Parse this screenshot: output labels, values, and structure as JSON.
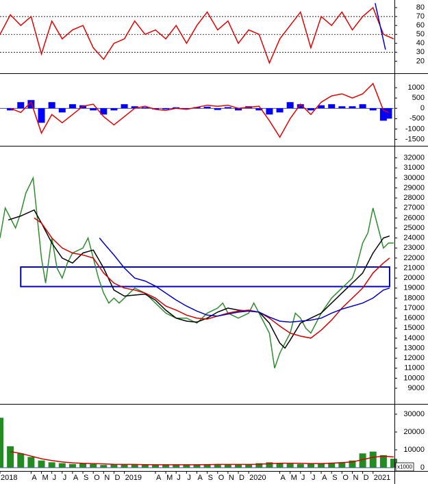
{
  "chart_data": [
    {
      "type": "line",
      "ylim": [
        8,
        87
      ],
      "yticks": [
        20,
        30,
        40,
        50,
        60,
        70,
        80
      ],
      "ref_lines": [
        30,
        50,
        70
      ],
      "xlim": [
        0,
        38
      ],
      "series": [
        {
          "color": "#e00000",
          "x": [
            0,
            1,
            2,
            3,
            4,
            5,
            6,
            7,
            8,
            9,
            10,
            11,
            12,
            13,
            14,
            15,
            16,
            17,
            18,
            19,
            20,
            21,
            22,
            23,
            24,
            25,
            26,
            27,
            28,
            29,
            30,
            31,
            32,
            33,
            34,
            35,
            36,
            37,
            38
          ],
          "values": [
            50,
            72,
            60,
            70,
            28,
            65,
            45,
            55,
            60,
            35,
            22,
            40,
            45,
            65,
            50,
            55,
            45,
            60,
            40,
            60,
            75,
            55,
            65,
            40,
            55,
            50,
            18,
            45,
            60,
            75,
            35,
            70,
            60,
            75,
            55,
            70,
            80,
            50,
            45
          ]
        },
        {
          "color": "#0000d0",
          "x": [
            36.2,
            37.2
          ],
          "values": [
            85,
            33
          ]
        }
      ]
    },
    {
      "type": "combo",
      "ylim": [
        -1750,
        1600
      ],
      "yticks": [
        -1500,
        -1000,
        -500,
        0,
        500,
        1000
      ],
      "xlim": [
        0,
        38
      ],
      "series": [
        {
          "kind": "bar",
          "color": "#0000ff",
          "x": [
            1,
            2,
            3,
            4,
            5,
            6,
            7,
            8,
            9,
            10,
            11,
            12,
            13,
            14,
            15,
            16,
            17,
            18,
            19,
            20,
            21,
            22,
            23,
            24,
            25,
            26,
            27,
            28,
            29,
            30,
            31,
            32,
            33,
            34,
            35,
            36,
            37,
            37.5
          ],
          "values": [
            -100,
            300,
            400,
            -700,
            300,
            -200,
            200,
            150,
            -100,
            -300,
            -100,
            200,
            100,
            50,
            -50,
            -50,
            50,
            -50,
            60,
            80,
            -80,
            60,
            -100,
            100,
            -100,
            -300,
            -200,
            300,
            200,
            -100,
            150,
            200,
            100,
            100,
            200,
            -100,
            -600,
            -500
          ]
        },
        {
          "kind": "line",
          "color": "#e00000",
          "x": [
            1,
            2,
            3,
            4,
            5,
            6,
            7,
            8,
            9,
            10,
            11,
            12,
            13,
            14,
            15,
            16,
            17,
            18,
            19,
            20,
            21,
            22,
            23,
            24,
            25,
            26,
            27,
            28,
            29,
            30,
            31,
            32,
            33,
            34,
            35,
            36,
            37,
            37.5
          ],
          "values": [
            0,
            -200,
            300,
            -1200,
            -300,
            -700,
            -300,
            100,
            200,
            -400,
            -800,
            -400,
            0,
            100,
            -50,
            -100,
            0,
            -50,
            50,
            150,
            100,
            150,
            0,
            50,
            100,
            -600,
            -1400,
            -500,
            200,
            -300,
            300,
            600,
            700,
            500,
            700,
            1200,
            -100,
            -200
          ]
        }
      ]
    },
    {
      "type": "line",
      "ylim": [
        7500,
        33000
      ],
      "yticks": [
        9000,
        10000,
        11000,
        12000,
        13000,
        14000,
        15000,
        16000,
        17000,
        18000,
        19000,
        20000,
        21000,
        22000,
        23000,
        24000,
        25000,
        26000,
        27000,
        28000,
        29000,
        30000,
        31000,
        32000
      ],
      "xlim": [
        0,
        38
      ],
      "zone": {
        "x": [
          2,
          37.6
        ],
        "y": [
          19150,
          21100
        ],
        "color": "#0000c0"
      },
      "series": [
        {
          "color": "#2e8b2e",
          "x": [
            0,
            0.5,
            1,
            1.5,
            2,
            2.5,
            3.2,
            3.6,
            4,
            4.4,
            5,
            5.5,
            6,
            6.5,
            7,
            8,
            8.5,
            9,
            9.5,
            10,
            10.5,
            11,
            11.5,
            12,
            13,
            14,
            15,
            16,
            17,
            18,
            19,
            20,
            21,
            21.5,
            22,
            23,
            24,
            24.5,
            25,
            26,
            26.5,
            27,
            27.5,
            28,
            28.5,
            29,
            29.5,
            30,
            30.5,
            31,
            32,
            33,
            34,
            34.5,
            35,
            35.5,
            36,
            36.5,
            37,
            37.5,
            38
          ],
          "values": [
            24000,
            27000,
            26000,
            25000,
            26500,
            28500,
            30000,
            26000,
            22000,
            19500,
            24000,
            21000,
            20000,
            21500,
            22500,
            23000,
            24000,
            22000,
            20000,
            18500,
            17500,
            18000,
            17500,
            18000,
            19000,
            18500,
            17500,
            16500,
            16000,
            16000,
            15500,
            16500,
            17000,
            17500,
            16500,
            16000,
            16500,
            17500,
            16500,
            14500,
            11000,
            12500,
            13500,
            14500,
            16500,
            16000,
            15000,
            14500,
            15500,
            16500,
            18000,
            19000,
            20000,
            21500,
            23500,
            24500,
            27000,
            25000,
            23000,
            23500,
            23500
          ]
        },
        {
          "color": "#000000",
          "x": [
            0.8,
            2,
            3.3,
            4,
            5,
            6,
            7,
            8,
            9,
            10,
            11,
            12,
            13,
            14,
            15,
            16,
            17,
            18,
            19,
            20,
            21,
            22,
            23,
            24,
            25,
            26,
            27,
            27.5,
            28,
            29,
            30,
            31,
            32,
            33,
            34,
            35,
            36,
            37,
            37.6
          ],
          "values": [
            25800,
            26200,
            26800,
            25500,
            23500,
            22000,
            21500,
            22500,
            22800,
            21000,
            18800,
            18200,
            18300,
            18400,
            17800,
            16800,
            16000,
            15700,
            15600,
            16000,
            16600,
            17000,
            16800,
            16700,
            16600,
            15500,
            13500,
            13000,
            13800,
            15500,
            16000,
            16500,
            17500,
            18500,
            19500,
            20500,
            22500,
            24000,
            24200
          ]
        },
        {
          "color": "#d00000",
          "x": [
            3.3,
            4,
            5,
            6,
            7,
            8,
            9,
            10,
            11,
            12,
            13,
            14,
            15,
            16,
            17,
            18,
            19,
            20,
            21,
            22,
            23,
            24,
            25,
            26,
            27,
            28,
            29,
            30,
            31,
            32,
            33,
            34,
            35,
            36,
            37,
            37.6
          ],
          "values": [
            26000,
            25500,
            24000,
            23000,
            22500,
            22300,
            22000,
            20500,
            19500,
            19000,
            18800,
            18500,
            18000,
            17200,
            16800,
            16300,
            16000,
            15900,
            16200,
            16500,
            16700,
            16800,
            16600,
            16000,
            15200,
            14500,
            14200,
            14000,
            14800,
            15800,
            17000,
            18000,
            19000,
            20500,
            21500,
            22000
          ]
        },
        {
          "color": "#0000c0",
          "x": [
            9.6,
            10,
            11,
            12,
            13,
            14,
            15,
            16,
            17,
            18,
            19,
            20,
            21,
            22,
            23,
            24,
            25,
            26,
            27,
            28,
            29,
            30,
            31,
            32,
            33,
            34,
            35,
            36,
            37,
            37.6
          ],
          "values": [
            24000,
            23500,
            22300,
            21000,
            20000,
            19700,
            19200,
            18500,
            17800,
            17200,
            16700,
            16300,
            16200,
            16400,
            16600,
            16700,
            16600,
            16100,
            15700,
            15600,
            15700,
            15800,
            16000,
            16500,
            16900,
            17200,
            17500,
            18000,
            18800,
            19000
          ]
        }
      ]
    },
    {
      "type": "combo",
      "ylim": [
        -1500,
        35000
      ],
      "yticks": [
        0,
        10000,
        20000,
        30000
      ],
      "xlim": [
        0,
        38
      ],
      "unit_label": "x1000",
      "xticks": [
        {
          "value": 0,
          "label": "2018"
        },
        {
          "value": 3,
          "label": "A"
        },
        {
          "value": 4,
          "label": "M"
        },
        {
          "value": 5,
          "label": "J"
        },
        {
          "value": 6,
          "label": "J"
        },
        {
          "value": 7,
          "label": "A"
        },
        {
          "value": 8,
          "label": "S"
        },
        {
          "value": 9,
          "label": "O"
        },
        {
          "value": 10,
          "label": "N"
        },
        {
          "value": 11,
          "label": "D"
        },
        {
          "value": 12,
          "label": "2019"
        },
        {
          "value": 15,
          "label": "A"
        },
        {
          "value": 16,
          "label": "M"
        },
        {
          "value": 17,
          "label": "J"
        },
        {
          "value": 18,
          "label": "J"
        },
        {
          "value": 19,
          "label": "A"
        },
        {
          "value": 20,
          "label": "S"
        },
        {
          "value": 21,
          "label": "O"
        },
        {
          "value": 22,
          "label": "N"
        },
        {
          "value": 23,
          "label": "D"
        },
        {
          "value": 24,
          "label": "2020"
        },
        {
          "value": 27,
          "label": "A"
        },
        {
          "value": 28,
          "label": "M"
        },
        {
          "value": 29,
          "label": "J"
        },
        {
          "value": 30,
          "label": "J"
        },
        {
          "value": 31,
          "label": "A"
        },
        {
          "value": 32,
          "label": "S"
        },
        {
          "value": 33,
          "label": "O"
        },
        {
          "value": 34,
          "label": "N"
        },
        {
          "value": 35,
          "label": "D"
        },
        {
          "value": 36,
          "label": "2021"
        }
      ],
      "series": [
        {
          "kind": "bar",
          "color": "#228b22",
          "x": [
            0,
            1,
            2,
            3,
            4,
            5,
            6,
            7,
            8,
            9,
            10,
            11,
            12,
            13,
            14,
            15,
            16,
            17,
            18,
            19,
            20,
            21,
            22,
            23,
            24,
            25,
            26,
            27,
            28,
            29,
            30,
            31,
            32,
            33,
            34,
            35,
            36,
            37,
            38
          ],
          "values": [
            28000,
            12000,
            8000,
            6000,
            4000,
            3000,
            2500,
            2000,
            2500,
            2000,
            1500,
            1800,
            2000,
            1800,
            1500,
            1500,
            1400,
            1600,
            1500,
            1800,
            2000,
            1800,
            1700,
            1600,
            1800,
            2500,
            3000,
            2500,
            2200,
            2000,
            2200,
            2500,
            2800,
            3000,
            4000,
            8000,
            9000,
            7000,
            5000
          ]
        },
        {
          "kind": "line",
          "color": "#d00000",
          "x": [
            1,
            2,
            3,
            4,
            5,
            6,
            7,
            8,
            9,
            10,
            11,
            12,
            13,
            14,
            15,
            16,
            17,
            18,
            19,
            20,
            21,
            22,
            23,
            24,
            25,
            26,
            27,
            28,
            29,
            30,
            31,
            32,
            33,
            34,
            35,
            36,
            37,
            38
          ],
          "values": [
            9000,
            8000,
            6500,
            5000,
            4000,
            3200,
            2700,
            2400,
            2300,
            2100,
            1900,
            1800,
            1800,
            1700,
            1600,
            1600,
            1600,
            1600,
            1600,
            1700,
            1800,
            1800,
            1800,
            1800,
            1900,
            2200,
            2500,
            2500,
            2400,
            2300,
            2300,
            2500,
            2800,
            3200,
            4500,
            5800,
            6500,
            6000
          ]
        }
      ]
    }
  ]
}
